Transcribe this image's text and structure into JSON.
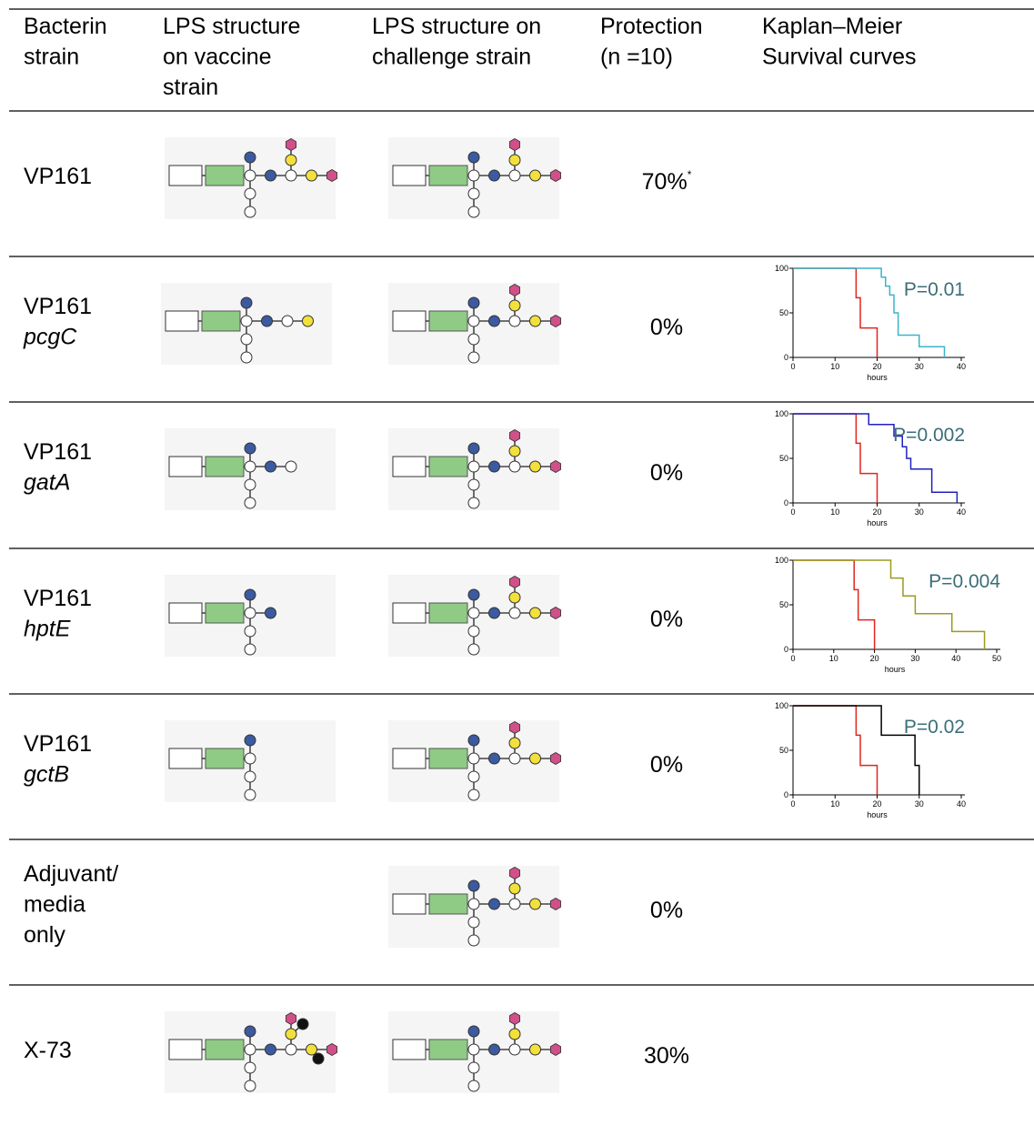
{
  "header": [
    [
      "Bacterin",
      "strain"
    ],
    [
      "LPS structure",
      "on vaccine",
      "strain"
    ],
    [
      "LPS structure on",
      "challenge strain"
    ],
    [
      "Protection",
      "(n =10)"
    ],
    [
      "Kaplan–Meier",
      "Survival curves"
    ]
  ],
  "rows": [
    {
      "strain": [
        "VP161"
      ],
      "protection": "70%",
      "protection_note": "*"
    },
    {
      "strain": [
        "VP161"
      ],
      "gene": "pcgC",
      "protection": "0%",
      "km": {
        "xlim": [
          0,
          40
        ],
        "ylim": [
          0,
          100
        ],
        "xticks": [
          0,
          10,
          20,
          30,
          40
        ],
        "yticks": [
          0,
          50,
          100
        ],
        "xlabel": "hours",
        "p_value": "P=0.01",
        "series": [
          {
            "color": "#e0261f",
            "x": [
              0,
              15,
              16,
              20
            ],
            "values": [
              100,
              67,
              33,
              0
            ]
          },
          {
            "color": "#3cb4c8",
            "x": [
              0,
              21,
              22,
              23,
              24,
              25,
              30,
              36
            ],
            "values": [
              100,
              90,
              80,
              70,
              50,
              25,
              12,
              0
            ]
          }
        ]
      }
    },
    {
      "strain": [
        "VP161"
      ],
      "gene": "gatA",
      "protection": "0%",
      "km": {
        "xlim": [
          0,
          40
        ],
        "ylim": [
          0,
          100
        ],
        "xticks": [
          0,
          10,
          20,
          30,
          40
        ],
        "yticks": [
          0,
          50,
          100
        ],
        "xlabel": "hours",
        "p_value": "P=0.002",
        "series": [
          {
            "color": "#e0261f",
            "x": [
              0,
              15,
              16,
              20
            ],
            "values": [
              100,
              67,
              33,
              0
            ]
          },
          {
            "color": "#2020c0",
            "x": [
              0,
              18,
              24,
              26,
              27,
              28,
              33,
              39
            ],
            "values": [
              100,
              88,
              75,
              63,
              50,
              38,
              12,
              0
            ]
          }
        ]
      }
    },
    {
      "strain": [
        "VP161"
      ],
      "gene": "hptE",
      "protection": "0%",
      "km": {
        "xlim": [
          0,
          50
        ],
        "ylim": [
          0,
          100
        ],
        "xticks": [
          0,
          10,
          20,
          30,
          40,
          50
        ],
        "yticks": [
          0,
          50,
          100
        ],
        "xlabel": "hours",
        "p_value": "P=0.004",
        "series": [
          {
            "color": "#e0261f",
            "x": [
              0,
              15,
              16,
              20
            ],
            "values": [
              100,
              67,
              33,
              0
            ]
          },
          {
            "color": "#9a9a20",
            "x": [
              0,
              24,
              27,
              30,
              39,
              47
            ],
            "values": [
              100,
              80,
              60,
              40,
              20,
              0
            ]
          }
        ]
      }
    },
    {
      "strain": [
        "VP161"
      ],
      "gene": "gctB",
      "protection": "0%",
      "km": {
        "xlim": [
          0,
          40
        ],
        "ylim": [
          0,
          100
        ],
        "xticks": [
          0,
          10,
          20,
          30,
          40
        ],
        "yticks": [
          0,
          50,
          100
        ],
        "xlabel": "hours",
        "p_value": "P=0.02",
        "series": [
          {
            "color": "#e0261f",
            "x": [
              0,
              15,
              16,
              20
            ],
            "values": [
              100,
              67,
              33,
              0
            ]
          },
          {
            "color": "#000000",
            "x": [
              0,
              21,
              29,
              30
            ],
            "values": [
              100,
              67,
              33,
              0
            ]
          }
        ]
      }
    },
    {
      "strain": [
        "Adjuvant/",
        "media",
        "only"
      ],
      "protection": "0%"
    },
    {
      "strain": [
        "X-73"
      ],
      "protection": "30%"
    }
  ]
}
